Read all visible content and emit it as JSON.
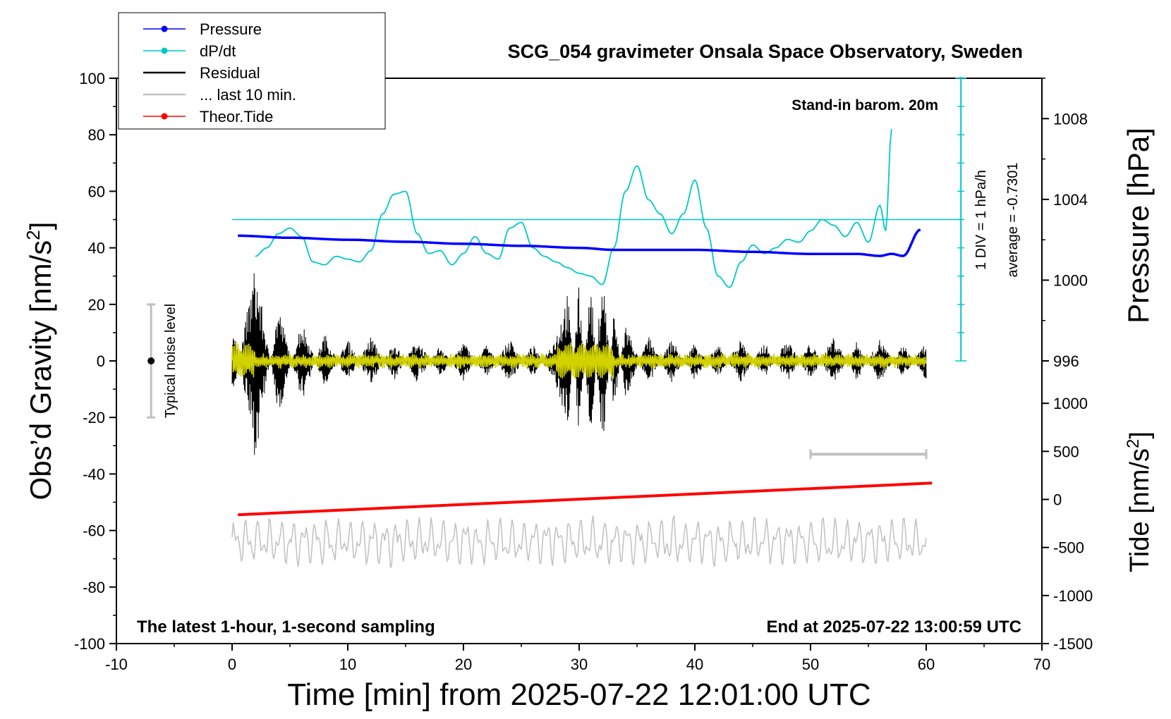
{
  "chart_data": {
    "type": "line",
    "title": "SCG_054 gravimeter Onsala Space Observatory, Sweden",
    "subtitle_right": "Stand-in barom. 20m",
    "xlabel": "Time [min] from 2025-07-22 12:01:00 UTC",
    "ylabel_left": "Obs’d Gravity [nm/s",
    "ylabel_left_sup": "2",
    "ylabel_left_close": "]",
    "ylabel_right_top": "Pressure [hPa]",
    "ylabel_right_bottom": "Tide [nm/s",
    "ylabel_right_bottom_sup": "2",
    "ylabel_right_bottom_close": "]",
    "xlim": [
      -10,
      70
    ],
    "ylim": [
      -100,
      100
    ],
    "pressure_lim": [
      996,
      1010
    ],
    "tide_lim": [
      -1500,
      1000
    ],
    "x_ticks": [
      "-10",
      "0",
      "10",
      "20",
      "30",
      "40",
      "50",
      "60",
      "70"
    ],
    "y_ticks": [
      "-100",
      "-80",
      "-60",
      "-40",
      "-20",
      "0",
      "20",
      "40",
      "60",
      "80",
      "100"
    ],
    "pressure_ticks": [
      "996",
      "1000",
      "1004",
      "1008"
    ],
    "tide_ticks": [
      "-1500",
      "-1000",
      "-500",
      "0",
      "500",
      "1000"
    ],
    "legend": [
      {
        "label": "Pressure",
        "color": "#0000ff",
        "marker": true
      },
      {
        "label": "dP/dt",
        "color": "#00c8c8",
        "marker": true
      },
      {
        "label": "Residual",
        "color": "#000000",
        "marker": false
      },
      {
        "label": "... last 10 min.",
        "color": "#c0c0c0",
        "marker": false
      },
      {
        "label": "Theor.Tide",
        "color": "#ff0000",
        "marker": true
      }
    ],
    "annotation_bottom_left": "The latest 1-hour, 1-second sampling",
    "annotation_bottom_right": "End at 2025-07-22 13:00:59 UTC",
    "noise_label": "Typical noise level",
    "noise_range": [
      -20,
      20
    ],
    "dpdt_scale_label": "1 DIV = 1 hPa/h",
    "dpdt_average_label": "average = -0.7301",
    "series": [
      {
        "name": "Pressure",
        "color": "#0000ff",
        "axis": "pressure",
        "x": [
          0.5,
          5,
          10,
          15,
          20,
          25,
          30,
          33,
          36,
          40,
          45,
          50,
          54,
          56,
          57,
          58,
          59.5
        ],
        "values": [
          1002.2,
          1002.1,
          1002.0,
          1001.9,
          1001.8,
          1001.7,
          1001.6,
          1001.5,
          1001.5,
          1001.5,
          1001.4,
          1001.3,
          1001.3,
          1001.2,
          1001.3,
          1001.2,
          1002.5
        ]
      },
      {
        "name": "dP/dt",
        "color": "#00c8c8",
        "axis": "gravity",
        "x": [
          2,
          3,
          4,
          5,
          6,
          7,
          8,
          9,
          10,
          11,
          12,
          13,
          14,
          15,
          16,
          17,
          18,
          19,
          20,
          21,
          22,
          23,
          24,
          25,
          26,
          27,
          28,
          29,
          30,
          31,
          32,
          33,
          34,
          35,
          36,
          37,
          38,
          39,
          40,
          41,
          42,
          43,
          44,
          45,
          46,
          47,
          48,
          49,
          50,
          51,
          52,
          53,
          54,
          55,
          56,
          56.5,
          57
        ],
        "values": [
          37,
          40,
          45,
          47,
          44,
          35,
          34,
          37,
          36,
          35,
          39,
          52,
          59,
          60,
          45,
          38,
          39,
          34,
          38,
          44,
          38,
          36,
          47,
          49,
          40,
          37,
          35,
          33,
          31,
          30,
          27,
          40,
          60,
          69,
          57,
          52,
          45,
          52,
          64,
          47,
          30,
          26,
          35,
          41,
          38,
          40,
          43,
          42,
          46,
          50,
          48,
          44,
          49,
          42,
          55,
          46,
          82
        ]
      },
      {
        "name": "Residual",
        "color": "#000000",
        "axis": "gravity",
        "x": [
          0,
          2,
          4,
          6,
          8,
          10,
          12,
          14,
          16,
          18,
          20,
          22,
          24,
          26,
          28,
          29,
          30,
          31,
          32,
          33,
          34,
          36,
          38,
          40,
          42,
          44,
          46,
          48,
          50,
          52,
          54,
          56,
          58,
          60
        ],
        "values": [
          15,
          -35,
          20,
          -15,
          10,
          -8,
          9,
          -7,
          8,
          -6,
          7,
          -6,
          8,
          -6,
          9,
          25,
          -28,
          30,
          -35,
          18,
          -14,
          9,
          -8,
          7,
          -6,
          8,
          -7,
          8,
          -7,
          9,
          -7,
          8,
          -6,
          7
        ]
      },
      {
        "name": "Theor.Tide",
        "color": "#ff0000",
        "axis": "tide",
        "x": [
          0.5,
          60.5
        ],
        "values": [
          -160,
          170
        ]
      }
    ]
  }
}
